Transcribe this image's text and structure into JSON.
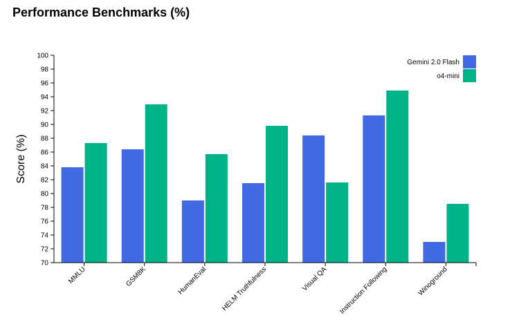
{
  "chart_data": {
    "type": "bar",
    "title": "Performance Benchmarks (%)",
    "xlabel": "",
    "ylabel": "Score (%)",
    "ylim": [
      70,
      100
    ],
    "yticks": [
      70,
      72,
      74,
      76,
      78,
      80,
      82,
      84,
      86,
      88,
      90,
      92,
      94,
      96,
      98,
      100
    ],
    "categories": [
      "MMLU",
      "GSM8K",
      "HumanEval",
      "HELM Truthfulness",
      "Visual QA",
      "Instruction Following",
      "Winoground"
    ],
    "series": [
      {
        "name": "Gemini 2.0 Flash",
        "color": "#4169e1",
        "values": [
          83.8,
          86.4,
          79.0,
          81.5,
          88.4,
          91.3,
          73.0
        ]
      },
      {
        "name": "o4-mini",
        "color": "#00b386",
        "values": [
          87.3,
          92.9,
          85.7,
          89.8,
          81.6,
          94.9,
          78.5
        ]
      }
    ],
    "grid": false,
    "legend_position": "top-right"
  }
}
